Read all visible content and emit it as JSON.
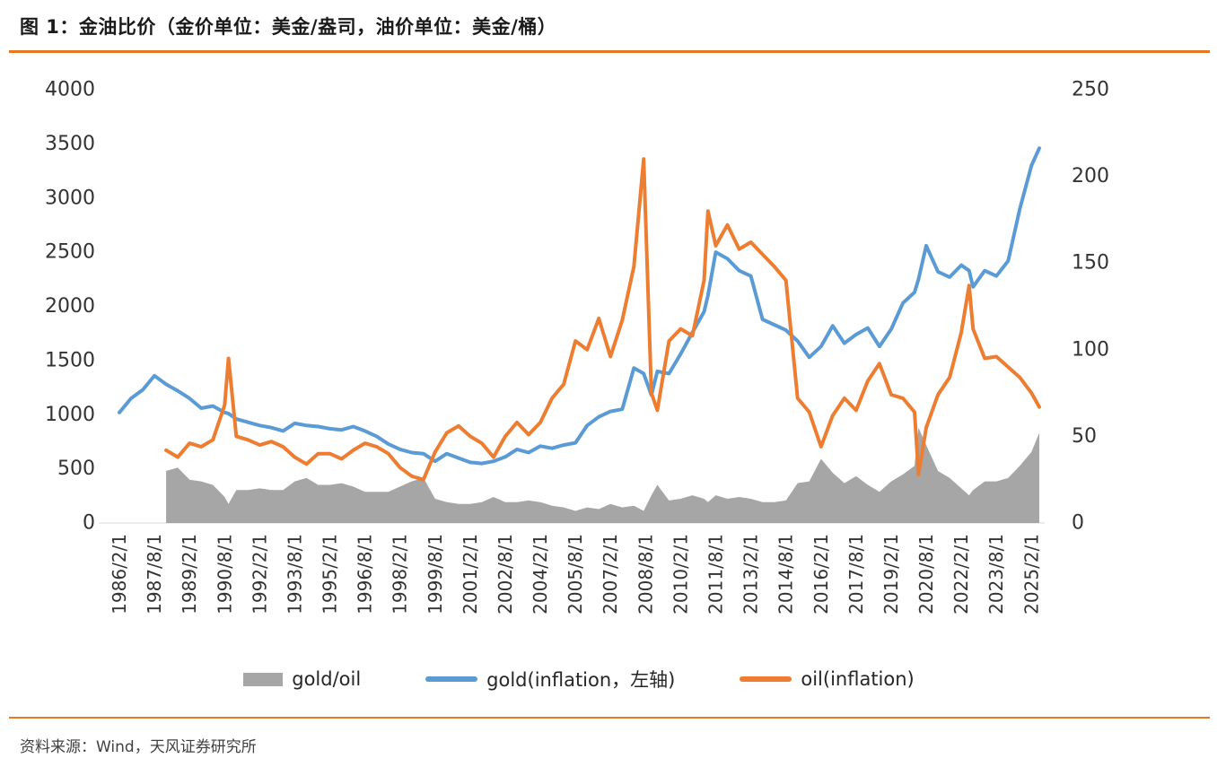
{
  "page": {
    "title": "图 1：金油比价（金价单位：美金/盎司，油价单位：美金/桶）",
    "source": "资料来源：Wind，天风证券研究所",
    "accent_color": "#e87722",
    "background_color": "#ffffff"
  },
  "chart_data": {
    "type": "line",
    "title": "金油比价（金价单位：美金/盎司，油价单位：美金/桶）",
    "grid": false,
    "legend_position": "bottom",
    "y_left": {
      "min": 0,
      "max": 4000,
      "ticks": [
        "4000",
        "3500",
        "3000",
        "2500",
        "2000",
        "1500",
        "1000",
        "500",
        "0"
      ]
    },
    "y_right": {
      "min": 0,
      "max": 250,
      "ticks": [
        "250",
        "200",
        "150",
        "100",
        "50",
        "0"
      ]
    },
    "x_tick_labels": [
      "1986/2/1",
      "1987/8/1",
      "1989/2/1",
      "1990/8/1",
      "1992/2/1",
      "1993/8/1",
      "1995/2/1",
      "1996/8/1",
      "1998/2/1",
      "1999/8/1",
      "2001/2/1",
      "2002/8/1",
      "2004/2/1",
      "2005/8/1",
      "2007/2/1",
      "2008/8/1",
      "2010/2/1",
      "2011/8/1",
      "2013/2/1",
      "2014/8/1",
      "2016/2/1",
      "2017/8/1",
      "2019/2/1",
      "2020/8/1",
      "2022/2/1",
      "2023/8/1",
      "2025/2/1"
    ],
    "x_dates": [
      "1986/2",
      "1986/8",
      "1987/2",
      "1987/8",
      "1988/2",
      "1988/8",
      "1989/2",
      "1989/8",
      "1990/2",
      "1990/8",
      "1990/10",
      "1991/2",
      "1991/8",
      "1992/2",
      "1992/8",
      "1993/2",
      "1993/8",
      "1994/2",
      "1994/8",
      "1995/2",
      "1995/8",
      "1996/2",
      "1996/8",
      "1997/2",
      "1997/8",
      "1998/2",
      "1998/8",
      "1999/2",
      "1999/8",
      "2000/2",
      "2000/8",
      "2001/2",
      "2001/8",
      "2002/2",
      "2002/8",
      "2003/2",
      "2003/8",
      "2004/2",
      "2004/8",
      "2005/2",
      "2005/8",
      "2006/2",
      "2006/8",
      "2007/2",
      "2007/8",
      "2008/2",
      "2008/7",
      "2008/11",
      "2009/2",
      "2009/8",
      "2010/2",
      "2010/8",
      "2011/2",
      "2011/4",
      "2011/8",
      "2012/2",
      "2012/8",
      "2013/2",
      "2013/8",
      "2014/2",
      "2014/8",
      "2015/2",
      "2015/8",
      "2016/2",
      "2016/8",
      "2017/2",
      "2017/8",
      "2018/2",
      "2018/8",
      "2019/2",
      "2019/8",
      "2020/2",
      "2020/4",
      "2020/8",
      "2021/2",
      "2021/8",
      "2022/2",
      "2022/6",
      "2022/8",
      "2023/2",
      "2023/8",
      "2024/2",
      "2024/8",
      "2025/2",
      "2025/6"
    ],
    "series": [
      {
        "name": "gold/oil",
        "axis": "right",
        "style": "area",
        "color": "#a6a6a6",
        "values": [
          null,
          null,
          null,
          null,
          30,
          32,
          25,
          24,
          22,
          15,
          11,
          19,
          19,
          20,
          19,
          19,
          24,
          26,
          22,
          22,
          23,
          21,
          18,
          18,
          18,
          21,
          24,
          26,
          14,
          12,
          11,
          11,
          12,
          15,
          12,
          12,
          13,
          12,
          10,
          9,
          7,
          9,
          8,
          11,
          9,
          10,
          7,
          16,
          22,
          13,
          14,
          16,
          14,
          12,
          16,
          14,
          15,
          14,
          12,
          12,
          13,
          23,
          24,
          37,
          29,
          23,
          27,
          22,
          18,
          24,
          28,
          33,
          55,
          45,
          30,
          26,
          20,
          16,
          19,
          24,
          24,
          26,
          33,
          41,
          52
        ]
      },
      {
        "name": "gold(inflation，左轴)",
        "axis": "left",
        "style": "line",
        "color": "#5b9bd5",
        "values": [
          1020,
          1150,
          1230,
          1360,
          1280,
          1220,
          1150,
          1060,
          1080,
          1020,
          1010,
          960,
          930,
          900,
          880,
          850,
          920,
          900,
          890,
          870,
          860,
          890,
          850,
          800,
          730,
          680,
          650,
          640,
          570,
          640,
          600,
          560,
          550,
          570,
          610,
          680,
          650,
          710,
          690,
          720,
          740,
          900,
          980,
          1030,
          1050,
          1430,
          1380,
          1180,
          1400,
          1380,
          1560,
          1760,
          1950,
          2100,
          2500,
          2440,
          2330,
          2280,
          1880,
          1830,
          1780,
          1680,
          1530,
          1630,
          1820,
          1660,
          1740,
          1800,
          1630,
          1790,
          2030,
          2130,
          2250,
          2560,
          2320,
          2270,
          2380,
          2330,
          2180,
          2330,
          2280,
          2420,
          2900,
          3300,
          3460
        ]
      },
      {
        "name": "oil(inflation)",
        "axis": "right",
        "style": "line",
        "color": "#ed7d31",
        "values": [
          null,
          null,
          null,
          null,
          42,
          38,
          46,
          44,
          48,
          68,
          95,
          50,
          48,
          45,
          47,
          44,
          38,
          34,
          40,
          40,
          37,
          42,
          46,
          44,
          40,
          32,
          27,
          25,
          41,
          52,
          56,
          50,
          46,
          38,
          50,
          58,
          51,
          58,
          72,
          80,
          105,
          100,
          118,
          96,
          117,
          148,
          210,
          75,
          65,
          105,
          112,
          108,
          140,
          180,
          160,
          172,
          158,
          162,
          155,
          148,
          140,
          72,
          64,
          44,
          62,
          72,
          65,
          82,
          92,
          74,
          72,
          64,
          28,
          55,
          74,
          84,
          110,
          137,
          112,
          95,
          96,
          90,
          84,
          75,
          67
        ]
      }
    ]
  }
}
